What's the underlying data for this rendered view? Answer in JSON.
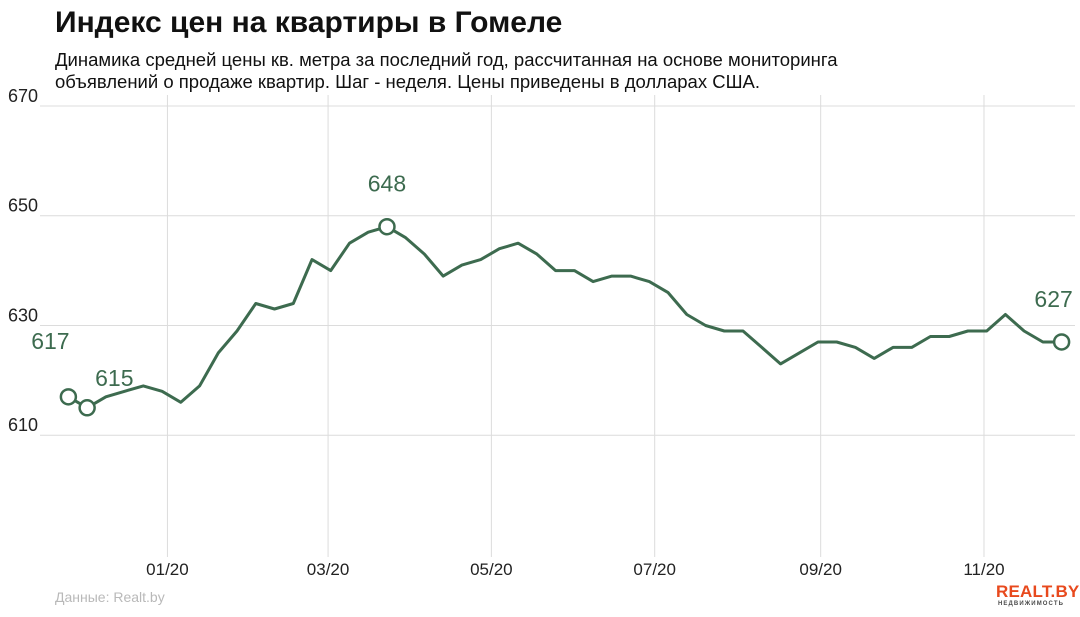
{
  "title": "Индекс цен на квартиры в Гомеле",
  "subtitle_lines": [
    "Динамика средней цены кв. метра за последний год, рассчитанная на основе мониторинга",
    "объявлений о продаже квартир. Шаг - неделя. Цены приведены в долларах США."
  ],
  "source": "Данные: Realt.by",
  "logo": {
    "main": "REALT.BY",
    "sub": "НЕДВИЖИМОСТЬ"
  },
  "colors": {
    "line": "#3d6b4f",
    "label": "#3d6b4f",
    "grid": "#dcdcdc",
    "text": "#111111",
    "source": "#b9b9b9",
    "logo": "#e8491d"
  },
  "chart_data": {
    "type": "line",
    "title": "Индекс цен на квартиры в Гомеле",
    "xlabel": "",
    "ylabel": "",
    "ylim": [
      590,
      672
    ],
    "xlim": [
      "2019-11-20",
      "2020-12-05"
    ],
    "y_ticks": [
      610,
      630,
      650,
      670
    ],
    "x_ticks": [
      {
        "date": "2020-01-01",
        "label": "01/20"
      },
      {
        "date": "2020-03-01",
        "label": "03/20"
      },
      {
        "date": "2020-05-01",
        "label": "05/20"
      },
      {
        "date": "2020-07-01",
        "label": "07/20"
      },
      {
        "date": "2020-09-01",
        "label": "09/20"
      },
      {
        "date": "2020-11-01",
        "label": "11/20"
      }
    ],
    "grid": true,
    "legend": "none",
    "series": [
      {
        "dates": [
          "2019-11-25",
          "2019-12-02",
          "2019-12-09",
          "2019-12-16",
          "2019-12-23",
          "2019-12-30",
          "2020-01-06",
          "2020-01-13",
          "2020-01-20",
          "2020-01-27",
          "2020-02-03",
          "2020-02-10",
          "2020-02-17",
          "2020-02-24",
          "2020-03-02",
          "2020-03-09",
          "2020-03-16",
          "2020-03-23",
          "2020-03-30",
          "2020-04-06",
          "2020-04-13",
          "2020-04-20",
          "2020-04-27",
          "2020-05-04",
          "2020-05-11",
          "2020-05-18",
          "2020-05-25",
          "2020-06-01",
          "2020-06-08",
          "2020-06-15",
          "2020-06-22",
          "2020-06-29",
          "2020-07-06",
          "2020-07-13",
          "2020-07-20",
          "2020-07-27",
          "2020-08-03",
          "2020-08-10",
          "2020-08-17",
          "2020-08-24",
          "2020-08-31",
          "2020-09-07",
          "2020-09-14",
          "2020-09-21",
          "2020-09-28",
          "2020-10-05",
          "2020-10-12",
          "2020-10-19",
          "2020-10-26",
          "2020-11-02",
          "2020-11-09",
          "2020-11-16",
          "2020-11-23",
          "2020-11-30"
        ],
        "values": [
          617,
          615,
          617,
          618,
          619,
          618,
          616,
          619,
          625,
          629,
          634,
          633,
          634,
          642,
          640,
          645,
          647,
          648,
          646,
          643,
          639,
          641,
          642,
          644,
          645,
          643,
          640,
          640,
          638,
          639,
          639,
          638,
          636,
          632,
          630,
          629,
          629,
          626,
          623,
          625,
          627,
          627,
          626,
          624,
          626,
          626,
          628,
          628,
          629,
          629,
          632,
          629,
          627,
          627
        ],
        "highlights": [
          {
            "date": "2019-11-25",
            "value": 617,
            "label": "617"
          },
          {
            "date": "2019-12-02",
            "value": 615,
            "label": "615"
          },
          {
            "date": "2020-03-23",
            "value": 648,
            "label": "648"
          },
          {
            "date": "2020-11-30",
            "value": 627,
            "label": "627"
          }
        ]
      }
    ]
  }
}
